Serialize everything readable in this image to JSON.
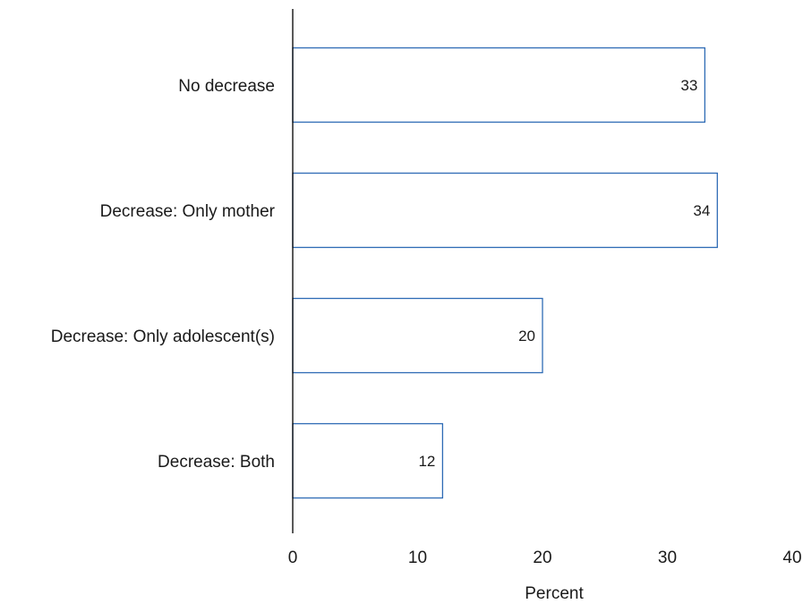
{
  "chart_data": {
    "type": "bar",
    "orientation": "horizontal",
    "categories": [
      "No decrease",
      "Decrease: Only mother",
      "Decrease: Only adolescent(s)",
      "Decrease: Both"
    ],
    "values": [
      33,
      34,
      20,
      12
    ],
    "data_labels": [
      "33",
      "34",
      "20",
      "12"
    ],
    "xlabel": "Percent",
    "ylabel": "",
    "xlim": [
      0,
      40
    ],
    "x_ticks": [
      0,
      10,
      20,
      30,
      40
    ],
    "x_tick_labels": [
      "0",
      "10",
      "20",
      "30",
      "40"
    ],
    "grid": false,
    "legend": "none",
    "colors": {
      "bar_fill": "#ffffff",
      "bar_stroke": "#2e6bb5",
      "axis": "#000000",
      "text": "#1a1a1a"
    }
  }
}
